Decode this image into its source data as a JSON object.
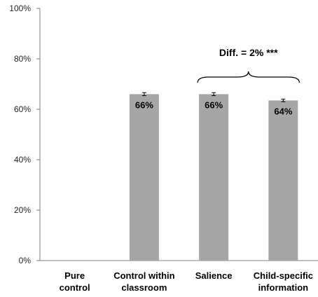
{
  "chart_data": {
    "type": "bar",
    "categories": [
      [
        "Pure",
        "control"
      ],
      [
        "Control within",
        "classroom"
      ],
      [
        "Salience"
      ],
      [
        "Child-specific",
        "information"
      ]
    ],
    "values": [
      null,
      0.66,
      0.66,
      0.635
    ],
    "error": [
      null,
      0.006,
      0.006,
      0.005
    ],
    "data_labels": [
      "",
      "66%",
      "66%",
      "64%"
    ],
    "ylim": [
      0,
      1
    ],
    "yticks": [
      0,
      0.2,
      0.4,
      0.6,
      0.8,
      1.0
    ],
    "ytick_labels": [
      "0%",
      "20%",
      "40%",
      "60%",
      "80%",
      "100%"
    ],
    "grid": false,
    "bar_color": "#a6a6a6",
    "annotation": {
      "text": "Diff. = 2% ***",
      "brace_from_category": 2,
      "brace_to_category": 3
    },
    "title": "",
    "xlabel": "",
    "ylabel": ""
  }
}
